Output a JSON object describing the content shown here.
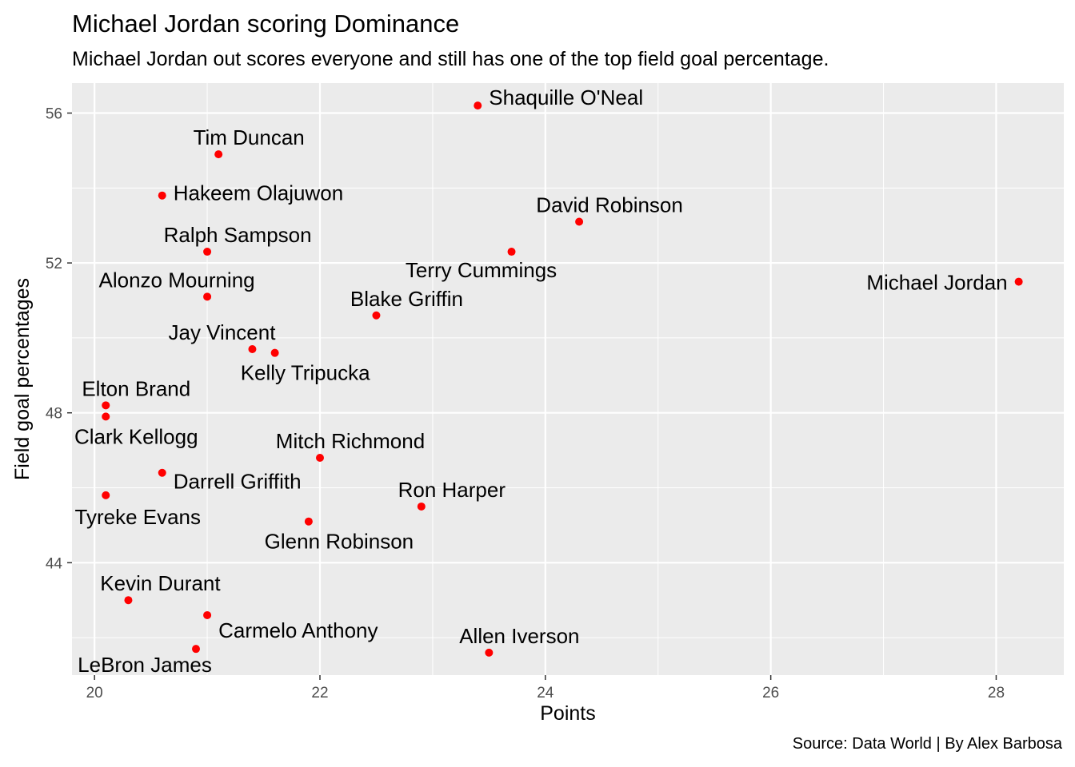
{
  "chart_data": {
    "type": "scatter",
    "title": "Michael Jordan scoring Dominance",
    "subtitle": "Michael Jordan out scores everyone and still has one of the top field goal percentage.",
    "caption": "Source: Data World | By Alex Barbosa",
    "xlabel": "Points",
    "ylabel": "Field goal percentages",
    "xlim": [
      19.8,
      28.6
    ],
    "ylim": [
      41.0,
      56.8
    ],
    "x_ticks": [
      20,
      22,
      24,
      26,
      28
    ],
    "y_ticks": [
      44,
      48,
      52,
      56
    ],
    "grid": true,
    "point_color": "#ff0000",
    "panel_color": "#ebebeb",
    "points": [
      {
        "label": "Shaquille O'Neal",
        "x": 23.4,
        "y": 56.2
      },
      {
        "label": "Tim Duncan",
        "x": 21.1,
        "y": 54.9
      },
      {
        "label": "Hakeem Olajuwon",
        "x": 20.6,
        "y": 53.8
      },
      {
        "label": "David Robinson",
        "x": 24.3,
        "y": 53.1
      },
      {
        "label": "Ralph Sampson",
        "x": 21.0,
        "y": 52.3
      },
      {
        "label": "Terry Cummings",
        "x": 23.7,
        "y": 52.3
      },
      {
        "label": "Michael Jordan",
        "x": 28.2,
        "y": 51.5
      },
      {
        "label": "Alonzo Mourning",
        "x": 21.0,
        "y": 51.1
      },
      {
        "label": "Blake Griffin",
        "x": 22.5,
        "y": 50.6
      },
      {
        "label": "Jay Vincent",
        "x": 21.4,
        "y": 49.7
      },
      {
        "label": "Kelly Tripucka",
        "x": 21.6,
        "y": 49.6
      },
      {
        "label": "Elton Brand",
        "x": 20.1,
        "y": 48.2
      },
      {
        "label": "Clark Kellogg",
        "x": 20.1,
        "y": 47.9
      },
      {
        "label": "Mitch Richmond",
        "x": 22.0,
        "y": 46.8
      },
      {
        "label": "Darrell Griffith",
        "x": 20.6,
        "y": 46.4
      },
      {
        "label": "Tyreke Evans",
        "x": 20.1,
        "y": 45.8
      },
      {
        "label": "Ron Harper",
        "x": 22.9,
        "y": 45.5
      },
      {
        "label": "Glenn Robinson",
        "x": 21.9,
        "y": 45.1
      },
      {
        "label": "Kevin Durant",
        "x": 20.3,
        "y": 43.0
      },
      {
        "label": "Carmelo Anthony",
        "x": 21.0,
        "y": 42.6
      },
      {
        "label": "LeBron James",
        "x": 20.9,
        "y": 41.7
      },
      {
        "label": "Allen Iverson",
        "x": 23.5,
        "y": 41.6
      }
    ]
  }
}
